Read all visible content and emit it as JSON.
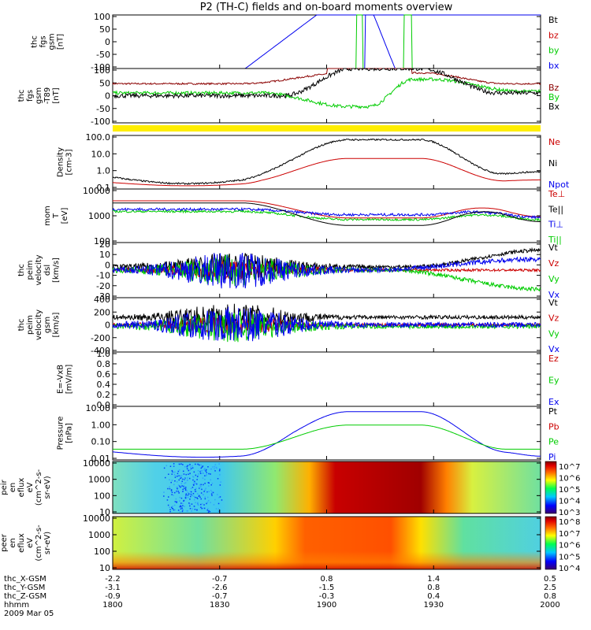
{
  "title": "P2 (TH-C) fields and on-board moments overview",
  "colors": {
    "black": "#000000",
    "red": "#cc0000",
    "green": "#00cc00",
    "blue": "#0000ee",
    "maroon": "#8b0000",
    "yellow": "#ffee00"
  },
  "chart_data": [
    {
      "type": "line",
      "id": "fgs",
      "ylabel": [
        "thc",
        "fgs",
        "gsm",
        "[nT]"
      ],
      "ylim": [
        -100,
        100
      ],
      "yticks": [
        "100",
        "50",
        "0",
        "-50",
        "-100"
      ],
      "legend": [
        {
          "name": "Bt",
          "color": "black"
        },
        {
          "name": "bz",
          "color": "red"
        },
        {
          "name": "by",
          "color": "green"
        },
        {
          "name": "bx",
          "color": "blue"
        }
      ]
    },
    {
      "type": "line",
      "id": "fgs_t89",
      "ylabel": [
        "thc",
        "fgs",
        "gsm",
        "-T89",
        "[nT]"
      ],
      "ylim": [
        -120,
        100
      ],
      "yticks": [
        "100",
        "50",
        "0",
        "-50",
        "-100"
      ],
      "legend": [
        {
          "name": "Bz",
          "color": "maroon"
        },
        {
          "name": "By",
          "color": "green"
        },
        {
          "name": "Bx",
          "color": "black"
        }
      ]
    },
    {
      "type": "line",
      "id": "density",
      "ylabel": [
        "Density",
        "[cm-3]"
      ],
      "log": true,
      "ylim": [
        0.1,
        100
      ],
      "yticks": [
        "100.0",
        "10.0",
        "1.0",
        "0.1"
      ],
      "legend": [
        {
          "name": "Ne",
          "color": "red"
        },
        {
          "name": "Ni",
          "color": "black"
        },
        {
          "name": "Npot",
          "color": "blue"
        }
      ]
    },
    {
      "type": "line",
      "id": "temp",
      "ylabel": [
        "mom",
        "T",
        "[eV]"
      ],
      "log": true,
      "ylim": [
        50,
        10000
      ],
      "yticks": [
        "10000",
        "1000",
        "100"
      ],
      "legend": [
        {
          "name": "Te⊥",
          "color": "red"
        },
        {
          "name": "Te||",
          "color": "black"
        },
        {
          "name": "Ti⊥",
          "color": "blue"
        },
        {
          "name": "Ti||",
          "color": "green"
        }
      ]
    },
    {
      "type": "line",
      "id": "peim_dsl",
      "ylabel": [
        "thc",
        "peim",
        "velocity",
        "dsl",
        "[km/s]"
      ],
      "ylim": [
        -30,
        30
      ],
      "yticks": [
        "20",
        "10",
        "0",
        "-10",
        "-20",
        "-30"
      ],
      "legend": [
        {
          "name": "Vt",
          "color": "black"
        },
        {
          "name": "Vz",
          "color": "red"
        },
        {
          "name": "Vy",
          "color": "green"
        },
        {
          "name": "Vx",
          "color": "blue"
        }
      ]
    },
    {
      "type": "line",
      "id": "peim_gsm",
      "ylabel": [
        "thc",
        "peim",
        "velocity",
        "gsm",
        "[km/s]"
      ],
      "ylim": [
        -400,
        400
      ],
      "yticks": [
        "400",
        "200",
        "0",
        "-200",
        "-400"
      ],
      "legend": [
        {
          "name": "Vt",
          "color": "black"
        },
        {
          "name": "Vz",
          "color": "red"
        },
        {
          "name": "Vy",
          "color": "green"
        },
        {
          "name": "Vx",
          "color": "blue"
        }
      ]
    },
    {
      "type": "line",
      "id": "efield",
      "ylabel": [
        "E=-VxB",
        "[mV/m]"
      ],
      "ylim": [
        0,
        1
      ],
      "yticks": [
        "1.0",
        "0.8",
        "0.6",
        "0.4",
        "0.2",
        "0.0"
      ],
      "legend": [
        {
          "name": "Ez",
          "color": "red"
        },
        {
          "name": "Ey",
          "color": "green"
        },
        {
          "name": "Ex",
          "color": "blue"
        }
      ]
    },
    {
      "type": "line",
      "id": "pressure",
      "ylabel": [
        "Pressure",
        "[nPa]"
      ],
      "log": true,
      "ylim": [
        0.004,
        10
      ],
      "yticks": [
        "10.00",
        "1.00",
        "0.10",
        "0.01"
      ],
      "legend": [
        {
          "name": "Pt",
          "color": "black"
        },
        {
          "name": "Pb",
          "color": "red"
        },
        {
          "name": "Pe",
          "color": "green"
        },
        {
          "name": "Pi",
          "color": "blue"
        }
      ]
    },
    {
      "type": "heatmap",
      "id": "peir",
      "ylabel": [
        "thc",
        "peir",
        "en",
        "eflux",
        "eV",
        "(cm^2-s-",
        "sr-eV)"
      ],
      "yticks": [
        "10000",
        "1000",
        "100",
        "10"
      ],
      "colorbar": [
        "10^7",
        "10^6",
        "10^5",
        "10^4",
        "10^3"
      ]
    },
    {
      "type": "heatmap",
      "id": "peer",
      "ylabel": [
        "thc",
        "peer",
        "en",
        "eflux",
        "eV",
        "(cm^2-s-",
        "sr-eV)"
      ],
      "yticks": [
        "10000",
        "1000",
        "100",
        "10"
      ],
      "colorbar": [
        "10^8",
        "10^7",
        "10^6",
        "10^5",
        "10^4"
      ]
    }
  ],
  "time_axis": {
    "rows": [
      "thc_X-GSM",
      "thc_Y-GSM",
      "thc_Z-GSM",
      "hhmm"
    ],
    "columns": [
      [
        "-2.2",
        "-3.1",
        "-0.9",
        "1800"
      ],
      [
        "-0.7",
        "-2.6",
        "-0.7",
        "1830"
      ],
      [
        "0.8",
        "-1.5",
        "-0.3",
        "1900"
      ],
      [
        "1.4",
        "0.8",
        "0.4",
        "1930"
      ],
      [
        "0.5",
        "2.5",
        "0.8",
        "2000"
      ]
    ],
    "date": "2009 Mar 05"
  }
}
